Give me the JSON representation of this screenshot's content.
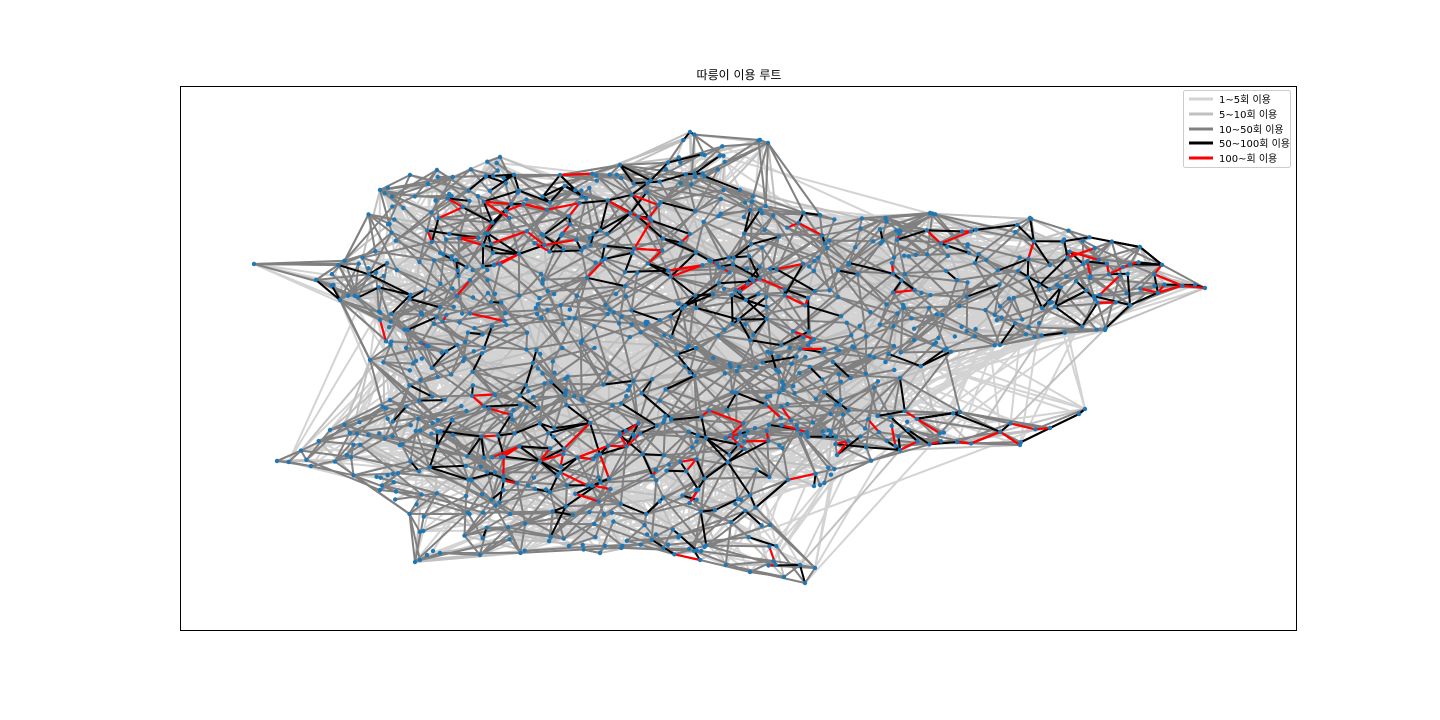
{
  "chart_data": {
    "type": "network",
    "title": "따릉이 이용 루트",
    "xlabel": "",
    "ylabel": "",
    "axes_visible": false,
    "grid": false,
    "legend_position": "top-right",
    "node_color": "#1f77b4",
    "edge_categories": [
      {
        "label": "1~5회 이용",
        "min_uses": 1,
        "max_uses": 5,
        "color": "#d3d3d3"
      },
      {
        "label": "5~10회 이용",
        "min_uses": 5,
        "max_uses": 10,
        "color": "#c0c0c0"
      },
      {
        "label": "10~50회 이용",
        "min_uses": 10,
        "max_uses": 50,
        "color": "#808080"
      },
      {
        "label": "50~100회 이용",
        "min_uses": 50,
        "max_uses": 100,
        "color": "#000000"
      },
      {
        "label": "100~회 이용",
        "min_uses": 100,
        "max_uses": null,
        "color": "#ff0000"
      }
    ]
  }
}
